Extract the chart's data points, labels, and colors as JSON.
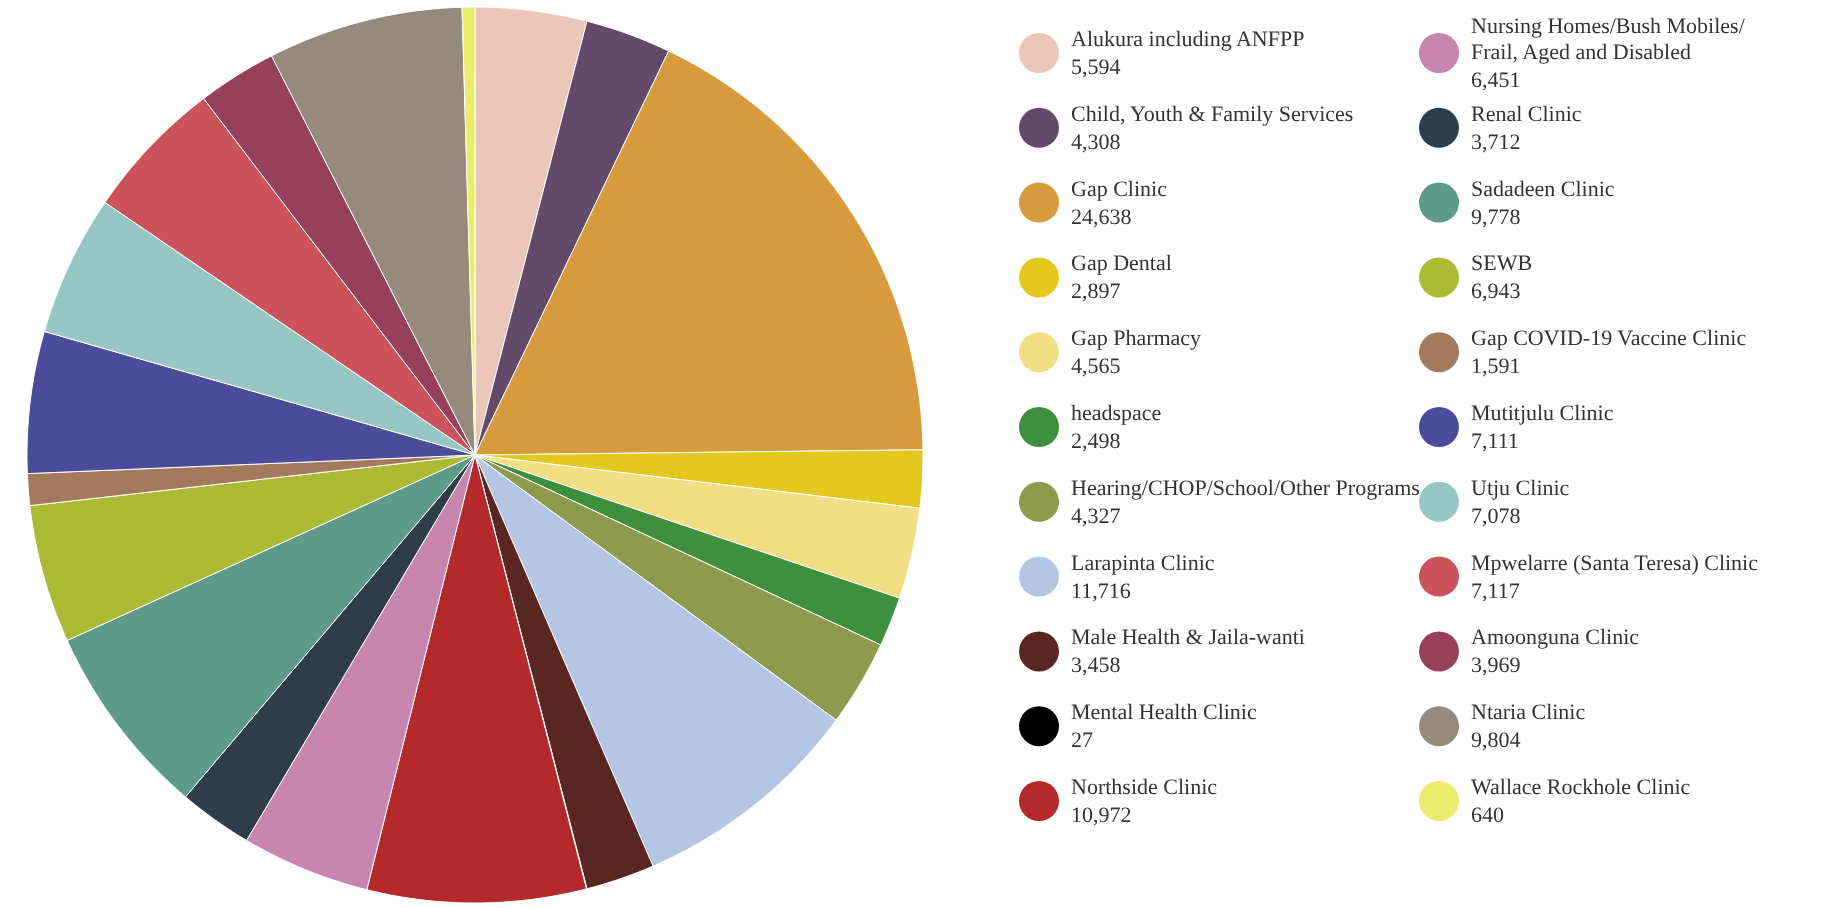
{
  "chart_data": {
    "type": "pie",
    "legend": "right",
    "categories": [
      "Alukura including ANFPP",
      "Child, Youth & Family Services",
      "Gap Clinic",
      "Gap Dental",
      "Gap Pharmacy",
      "headspace",
      "Hearing/CHOP/School/Other Programs",
      "Larapinta Clinic",
      "Male Health & Jaila-wanti",
      "Mental Health Clinic",
      "Northside Clinic",
      "Nursing Homes/Bush Mobiles/Frail, Aged and Disabled",
      "Renal Clinic",
      "Sadadeen Clinic",
      "SEWB",
      "Gap COVID-19 Vaccine Clinic",
      "Mutitjulu Clinic",
      "Utju Clinic",
      "Mpwelarre (Santa Teresa) Clinic",
      "Amoonguna Clinic",
      "Ntaria Clinic",
      "Wallace Rockhole Clinic"
    ],
    "values": [
      5594,
      4308,
      24638,
      2897,
      4565,
      2498,
      4327,
      11716,
      3458,
      27,
      10972,
      6451,
      3712,
      9778,
      6943,
      1591,
      7111,
      7078,
      7117,
      3969,
      9804,
      640
    ],
    "value_labels": [
      "5,594",
      "4,308",
      "24,638",
      "2,897",
      "4,565",
      "2,498",
      "4,327",
      "11,716",
      "3,458",
      "27",
      "10,972",
      "6,451",
      "3,712",
      "9,778",
      "6,943",
      "1,591",
      "7,111",
      "7,078",
      "7,117",
      "3,969",
      "9,804",
      "640"
    ],
    "colors": [
      "#ecc5b9",
      "#634a6b",
      "#d79a3c",
      "#e5c81e",
      "#f2de85",
      "#3e8f3e",
      "#8e9a4e",
      "#b5c6e5",
      "#5a2622",
      "#000000",
      "#b5292b",
      "#c785b0",
      "#2f3d4a",
      "#5e9a8a",
      "#aabb33",
      "#a47a5c",
      "#4c4c9c",
      "#96c7c5",
      "#cc525c",
      "#96405c",
      "#958a7c",
      "#e9ec6c"
    ]
  }
}
